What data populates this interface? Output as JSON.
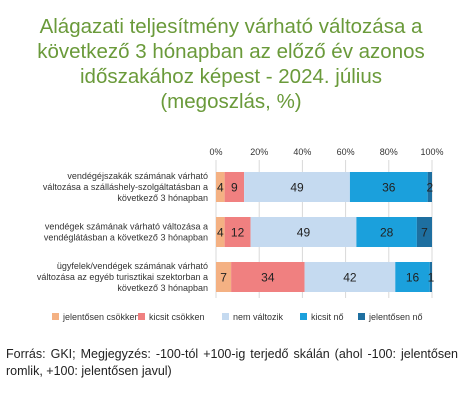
{
  "title_lines": [
    "Alágazati teljesítmény várható változása a",
    "következő 3 hónapban az előző év azonos",
    "időszakához képest - 2024. július",
    "(megoszlás, %)"
  ],
  "colors": {
    "title": "#6a9a3a",
    "jelentosen_csokken": "#f4b183",
    "kicsit_csokken": "#f08080",
    "nem_valtozik": "#c5daf0",
    "kicsit_no": "#1ba0dc",
    "jelentosen_no": "#1e6fa0"
  },
  "chart_data": {
    "type": "bar",
    "orientation": "horizontal",
    "stacked": true,
    "xlim": [
      0,
      100
    ],
    "xticks": [
      "0%",
      "20%",
      "40%",
      "60%",
      "80%",
      "100%"
    ],
    "legend_position": "bottom",
    "grid": true,
    "categories": [
      "vendégéjszakák számának várható változása a szálláshely-szolgáltatásban a következő 3 hónapban",
      "vendégek számának várható változása a vendéglátásban a következő 3 hónapban",
      "ügyfelek/vendégek számának várható változása az egyéb turisztikai szektorban a következő 3 hónapban"
    ],
    "category_lines": [
      [
        "vendégéjszakák számának várható",
        "változása a szálláshely-szolgáltatásban a",
        "következő 3 hónapban"
      ],
      [
        "vendégek számának várható változása a",
        "vendéglátásban a következő 3 hónapban"
      ],
      [
        "ügyfelek/vendégek számának várható",
        "változása az egyéb turisztikai szektorban a",
        "következő 3 hónapban"
      ]
    ],
    "series": [
      {
        "name": "jelentősen csökken",
        "values": [
          4,
          4,
          7
        ]
      },
      {
        "name": "kicsit csökken",
        "values": [
          9,
          12,
          34
        ]
      },
      {
        "name": "nem változik",
        "values": [
          49,
          49,
          42
        ]
      },
      {
        "name": "kicsit nő",
        "values": [
          36,
          28,
          16
        ]
      },
      {
        "name": "jelentősen nő",
        "values": [
          2,
          7,
          1
        ]
      }
    ]
  },
  "source_text": "Forrás: GKI; Megjegyzés: -100-tól +100-ig terjedő skálán (ahol -100: jelentősen romlik, +100: jelentősen javul)"
}
